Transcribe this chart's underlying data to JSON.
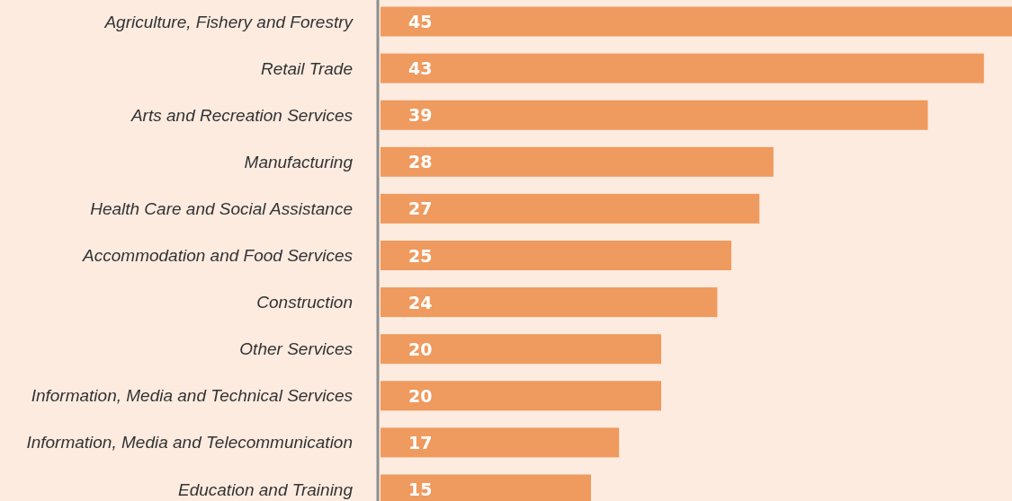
{
  "chart_data": {
    "type": "bar",
    "orientation": "horizontal",
    "categories": [
      "Agriculture, Fishery and Forestry",
      "Retail Trade",
      "Arts and Recreation Services",
      "Manufacturing",
      "Health Care and Social Assistance",
      "Accommodation and Food Services",
      "Construction",
      "Other Services",
      "Information, Media and Technical Services",
      "Information, Media and Telecommunication",
      "Education and Training"
    ],
    "values": [
      45,
      43,
      39,
      28,
      27,
      25,
      24,
      20,
      20,
      17,
      15
    ],
    "color": "#ef9a5e",
    "xlim": [
      0,
      45
    ],
    "tick_labels": "y",
    "data_labels": true
  }
}
